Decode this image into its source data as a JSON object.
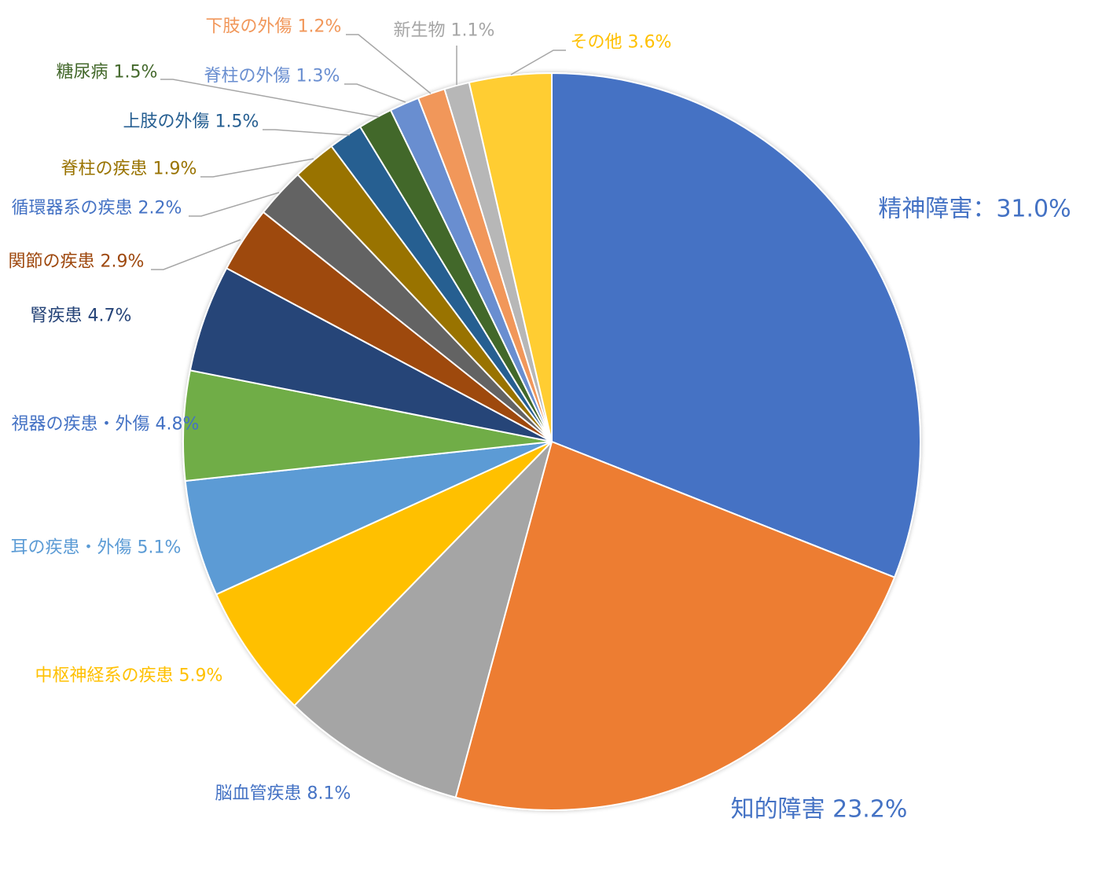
{
  "chart_data": {
    "type": "pie",
    "title": "",
    "start_angle_deg": 0,
    "direction": "clockwise",
    "slices": [
      {
        "label": "精神障害：31.0%",
        "name": "精神障害",
        "value": 31.0,
        "color": "#4472C4",
        "label_color": "#4472C4"
      },
      {
        "label": "知的障害 23.2%",
        "name": "知的障害",
        "value": 23.2,
        "color": "#ED7D31",
        "label_color": "#4472C4"
      },
      {
        "label": "脳血管疾患 8.1%",
        "name": "脳血管疾患",
        "value": 8.1,
        "color": "#A5A5A5",
        "label_color": "#4472C4"
      },
      {
        "label": "中枢神経系の疾患 5.9%",
        "name": "中枢神経系の疾患",
        "value": 5.9,
        "color": "#FFC000",
        "label_color": "#FFC000"
      },
      {
        "label": "耳の疾患・外傷 5.1%",
        "name": "耳の疾患・外傷",
        "value": 5.1,
        "color": "#5B9BD5",
        "label_color": "#5B9BD5"
      },
      {
        "label": "視器の疾患・外傷 4.8%",
        "name": "視器の疾患・外傷",
        "value": 4.8,
        "color": "#70AD47",
        "label_color": "#4472C4"
      },
      {
        "label": "腎疾患 4.7%",
        "name": "腎疾患",
        "value": 4.7,
        "color": "#264478",
        "label_color": "#264478"
      },
      {
        "label": "関節の疾患 2.9%",
        "name": "関節の疾患",
        "value": 2.9,
        "color": "#9E480E",
        "label_color": "#9E480E"
      },
      {
        "label": "循環器系の疾患 2.2%",
        "name": "循環器系の疾患",
        "value": 2.2,
        "color": "#636363",
        "label_color": "#4472C4"
      },
      {
        "label": "脊柱の疾患 1.9%",
        "name": "脊柱の疾患",
        "value": 1.9,
        "color": "#997300",
        "label_color": "#997300"
      },
      {
        "label": "上肢の外傷 1.5%",
        "name": "上肢の外傷",
        "value": 1.5,
        "color": "#255E91",
        "label_color": "#255E91"
      },
      {
        "label": "糖尿病 1.5%",
        "name": "糖尿病",
        "value": 1.5,
        "color": "#43682B",
        "label_color": "#43682B"
      },
      {
        "label": "脊柱の外傷 1.3%",
        "name": "脊柱の外傷",
        "value": 1.3,
        "color": "#698ED0",
        "label_color": "#698ED0"
      },
      {
        "label": "下肢の外傷 1.2%",
        "name": "下肢の外傷",
        "value": 1.2,
        "color": "#F1975A",
        "label_color": "#F1975A"
      },
      {
        "label": "新生物 1.1%",
        "name": "新生物",
        "value": 1.1,
        "color": "#B7B7B7",
        "label_color": "#A5A5A5"
      },
      {
        "label": "その他 3.6%",
        "name": "その他",
        "value": 3.6,
        "color": "#FFCD33",
        "label_color": "#FFC000"
      }
    ]
  }
}
